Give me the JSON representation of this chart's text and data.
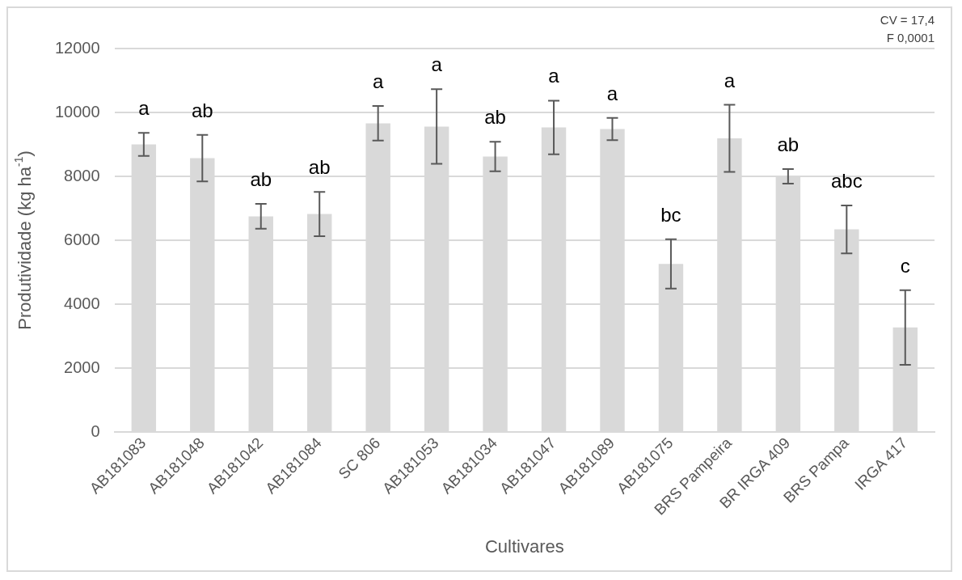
{
  "chart_data": {
    "type": "bar",
    "xlabel": "Cultivares",
    "ylabel": "Produtividade (kg ha$^{-1}$)",
    "categories": [
      "AB181083",
      "AB181048",
      "AB181042",
      "AB181084",
      "SC 806",
      "AB181053",
      "AB181034",
      "AB181047",
      "AB181089",
      "AB181075",
      "BRS Pampeira",
      "BR IRGA 409",
      "BRS Pampa",
      "IRGA 417"
    ],
    "values": [
      9000,
      8570,
      6750,
      6820,
      9660,
      9560,
      8620,
      9530,
      9480,
      5260,
      9190,
      8000,
      6340,
      3270
    ],
    "errors": [
      360,
      730,
      390,
      690,
      540,
      1170,
      460,
      840,
      350,
      770,
      1050,
      230,
      750,
      1170
    ],
    "color": "#d9d9d9",
    "ylim": [
      0,
      12000
    ],
    "yticks": [
      0,
      2000,
      4000,
      6000,
      8000,
      10000,
      12000
    ],
    "grid": "y",
    "value_labels": [
      "a",
      "ab",
      "ab",
      "ab",
      "a",
      "a",
      "ab",
      "a",
      "a",
      "bc",
      "a",
      "ab",
      "abc",
      "c"
    ],
    "annotations": [
      "CV = 17,4",
      "F 0,0001"
    ]
  }
}
